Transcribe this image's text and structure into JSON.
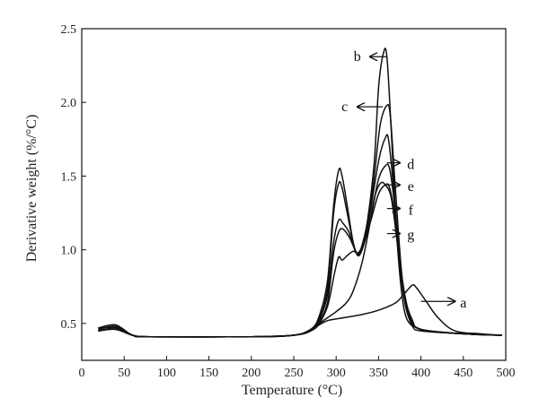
{
  "chart_data": {
    "type": "line",
    "xlabel": "Temperature (°C)",
    "ylabel": "Derivative weight (%/°C)",
    "xlim": [
      0,
      500
    ],
    "ylim": [
      0.25,
      2.5
    ],
    "x_ticks": [
      0,
      50,
      100,
      150,
      200,
      250,
      300,
      350,
      400,
      450,
      500
    ],
    "y_ticks": [
      0.5,
      1.0,
      1.5,
      2.0,
      2.5
    ],
    "y_tick_labels": [
      "0.5",
      "1.0",
      "1.5",
      "2.0",
      "2.5"
    ],
    "grid": false,
    "legend": "none",
    "series": [
      {
        "name": "a",
        "points": [
          [
            20,
            0.45
          ],
          [
            40,
            0.46
          ],
          [
            60,
            0.42
          ],
          [
            80,
            0.41
          ],
          [
            150,
            0.41
          ],
          [
            200,
            0.41
          ],
          [
            250,
            0.42
          ],
          [
            270,
            0.45
          ],
          [
            280,
            0.49
          ],
          [
            290,
            0.52
          ],
          [
            310,
            0.54
          ],
          [
            330,
            0.56
          ],
          [
            350,
            0.59
          ],
          [
            370,
            0.64
          ],
          [
            380,
            0.7
          ],
          [
            390,
            0.76
          ],
          [
            395,
            0.74
          ],
          [
            405,
            0.66
          ],
          [
            420,
            0.54
          ],
          [
            440,
            0.45
          ],
          [
            470,
            0.43
          ],
          [
            495,
            0.42
          ]
        ]
      },
      {
        "name": "b",
        "points": [
          [
            20,
            0.47
          ],
          [
            40,
            0.47
          ],
          [
            60,
            0.42
          ],
          [
            80,
            0.41
          ],
          [
            200,
            0.41
          ],
          [
            250,
            0.42
          ],
          [
            270,
            0.46
          ],
          [
            280,
            0.55
          ],
          [
            290,
            0.8
          ],
          [
            297,
            1.3
          ],
          [
            303,
            1.54
          ],
          [
            307,
            1.5
          ],
          [
            313,
            1.3
          ],
          [
            320,
            1.05
          ],
          [
            325,
            0.97
          ],
          [
            330,
            1.02
          ],
          [
            337,
            1.2
          ],
          [
            345,
            1.6
          ],
          [
            350,
            2.1
          ],
          [
            356,
            2.34
          ],
          [
            360,
            2.3
          ],
          [
            365,
            1.8
          ],
          [
            372,
            1.05
          ],
          [
            380,
            0.6
          ],
          [
            390,
            0.48
          ],
          [
            400,
            0.45
          ],
          [
            450,
            0.43
          ],
          [
            495,
            0.42
          ]
        ]
      },
      {
        "name": "c",
        "points": [
          [
            20,
            0.46
          ],
          [
            40,
            0.48
          ],
          [
            60,
            0.42
          ],
          [
            80,
            0.41
          ],
          [
            200,
            0.41
          ],
          [
            250,
            0.42
          ],
          [
            270,
            0.46
          ],
          [
            280,
            0.53
          ],
          [
            290,
            0.75
          ],
          [
            297,
            1.25
          ],
          [
            303,
            1.45
          ],
          [
            307,
            1.42
          ],
          [
            313,
            1.25
          ],
          [
            320,
            1.05
          ],
          [
            325,
            0.97
          ],
          [
            330,
            1.0
          ],
          [
            337,
            1.15
          ],
          [
            345,
            1.5
          ],
          [
            352,
            1.85
          ],
          [
            360,
            1.98
          ],
          [
            364,
            1.9
          ],
          [
            370,
            1.4
          ],
          [
            378,
            0.8
          ],
          [
            387,
            0.55
          ],
          [
            400,
            0.46
          ],
          [
            450,
            0.43
          ],
          [
            495,
            0.42
          ]
        ]
      },
      {
        "name": "d",
        "points": [
          [
            20,
            0.47
          ],
          [
            40,
            0.49
          ],
          [
            60,
            0.42
          ],
          [
            80,
            0.41
          ],
          [
            200,
            0.41
          ],
          [
            250,
            0.42
          ],
          [
            270,
            0.45
          ],
          [
            280,
            0.52
          ],
          [
            290,
            0.7
          ],
          [
            297,
            1.05
          ],
          [
            303,
            1.2
          ],
          [
            308,
            1.18
          ],
          [
            315,
            1.12
          ],
          [
            322,
            1.0
          ],
          [
            327,
            0.96
          ],
          [
            333,
            1.05
          ],
          [
            340,
            1.25
          ],
          [
            350,
            1.6
          ],
          [
            358,
            1.76
          ],
          [
            362,
            1.74
          ],
          [
            368,
            1.4
          ],
          [
            376,
            0.85
          ],
          [
            385,
            0.55
          ],
          [
            400,
            0.46
          ],
          [
            450,
            0.43
          ],
          [
            495,
            0.42
          ]
        ]
      },
      {
        "name": "e",
        "points": [
          [
            20,
            0.46
          ],
          [
            40,
            0.48
          ],
          [
            60,
            0.42
          ],
          [
            80,
            0.41
          ],
          [
            200,
            0.41
          ],
          [
            250,
            0.42
          ],
          [
            270,
            0.45
          ],
          [
            280,
            0.51
          ],
          [
            290,
            0.65
          ],
          [
            297,
            0.98
          ],
          [
            303,
            1.12
          ],
          [
            308,
            1.14
          ],
          [
            316,
            1.08
          ],
          [
            323,
            0.99
          ],
          [
            328,
            0.97
          ],
          [
            335,
            1.08
          ],
          [
            342,
            1.25
          ],
          [
            350,
            1.48
          ],
          [
            358,
            1.57
          ],
          [
            363,
            1.55
          ],
          [
            369,
            1.3
          ],
          [
            377,
            0.82
          ],
          [
            386,
            0.55
          ],
          [
            400,
            0.46
          ],
          [
            450,
            0.43
          ],
          [
            495,
            0.42
          ]
        ]
      },
      {
        "name": "f",
        "points": [
          [
            20,
            0.45
          ],
          [
            40,
            0.47
          ],
          [
            60,
            0.42
          ],
          [
            80,
            0.41
          ],
          [
            200,
            0.41
          ],
          [
            250,
            0.42
          ],
          [
            270,
            0.45
          ],
          [
            280,
            0.5
          ],
          [
            290,
            0.62
          ],
          [
            298,
            0.84
          ],
          [
            303,
            0.95
          ],
          [
            307,
            0.93
          ],
          [
            313,
            0.96
          ],
          [
            320,
            0.99
          ],
          [
            326,
            0.98
          ],
          [
            333,
            1.05
          ],
          [
            341,
            1.2
          ],
          [
            350,
            1.38
          ],
          [
            358,
            1.44
          ],
          [
            363,
            1.42
          ],
          [
            370,
            1.2
          ],
          [
            378,
            0.8
          ],
          [
            387,
            0.55
          ],
          [
            400,
            0.46
          ],
          [
            450,
            0.43
          ],
          [
            495,
            0.42
          ]
        ]
      },
      {
        "name": "g",
        "points": [
          [
            20,
            0.45
          ],
          [
            40,
            0.46
          ],
          [
            60,
            0.42
          ],
          [
            80,
            0.41
          ],
          [
            200,
            0.41
          ],
          [
            250,
            0.42
          ],
          [
            270,
            0.46
          ],
          [
            285,
            0.52
          ],
          [
            300,
            0.58
          ],
          [
            312,
            0.64
          ],
          [
            320,
            0.72
          ],
          [
            330,
            0.9
          ],
          [
            338,
            1.12
          ],
          [
            345,
            1.35
          ],
          [
            352,
            1.45
          ],
          [
            358,
            1.44
          ],
          [
            365,
            1.35
          ],
          [
            372,
            1.05
          ],
          [
            380,
            0.7
          ],
          [
            390,
            0.52
          ],
          [
            400,
            0.46
          ],
          [
            450,
            0.43
          ],
          [
            495,
            0.42
          ]
        ]
      }
    ],
    "annotations": [
      {
        "text": "b",
        "x": 325,
        "y": 2.31,
        "arrow_tip_x": 340,
        "arrow_tail_x": 360,
        "arrow_y": 2.31
      },
      {
        "text": "c",
        "x": 310,
        "y": 1.97,
        "arrow_tip_x": 325,
        "arrow_tail_x": 355,
        "arrow_y": 1.97
      },
      {
        "text": "d",
        "x": 388,
        "y": 1.58,
        "arrow_tip_x": 375,
        "arrow_tail_x": 360,
        "arrow_y": 1.59
      },
      {
        "text": "e",
        "x": 388,
        "y": 1.43,
        "arrow_tip_x": 375,
        "arrow_tail_x": 360,
        "arrow_y": 1.44
      },
      {
        "text": "f",
        "x": 388,
        "y": 1.27,
        "arrow_tip_x": 375,
        "arrow_tail_x": 360,
        "arrow_y": 1.28
      },
      {
        "text": "g",
        "x": 388,
        "y": 1.1,
        "arrow_tip_x": 375,
        "arrow_tail_x": 360,
        "arrow_y": 1.11
      },
      {
        "text": "a",
        "x": 450,
        "y": 0.64,
        "arrow_tip_x": 440,
        "arrow_tail_x": 400,
        "arrow_y": 0.65
      }
    ]
  }
}
